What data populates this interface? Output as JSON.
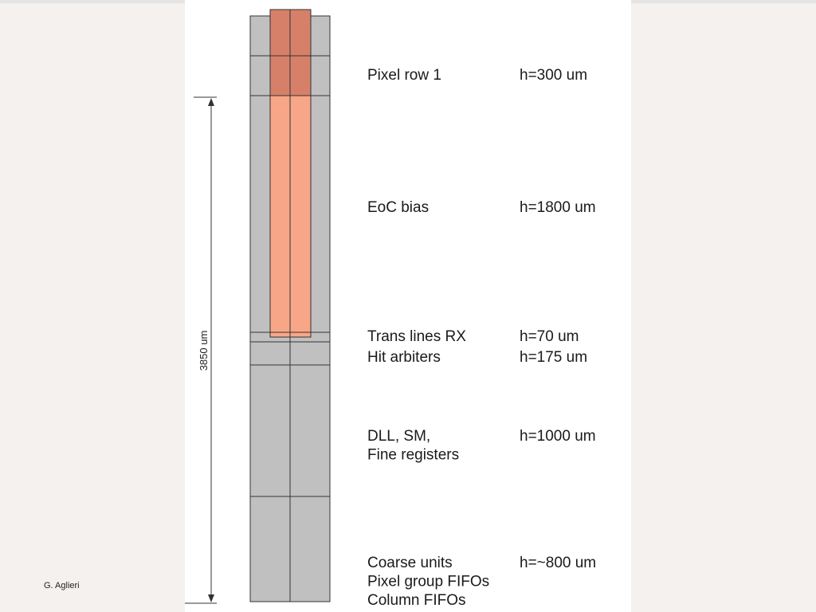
{
  "author": "G. Aglieri",
  "dimension": "3850 um",
  "rows": [
    {
      "label": [
        "Pixel row 1"
      ],
      "height": "h=300 um"
    },
    {
      "label": [
        "EoC bias"
      ],
      "height": "h=1800 um"
    },
    {
      "label": [
        "Trans lines RX"
      ],
      "height": "h=70 um"
    },
    {
      "label": [
        "Hit arbiters"
      ],
      "height": "h=175 um"
    },
    {
      "label": [
        "DLL, SM,",
        "Fine registers"
      ],
      "height": "h=1000 um"
    },
    {
      "label": [
        "Coarse units",
        "Pixel group FIFOs",
        "Column FIFOs"
      ],
      "height": "h=~800 um"
    }
  ]
}
